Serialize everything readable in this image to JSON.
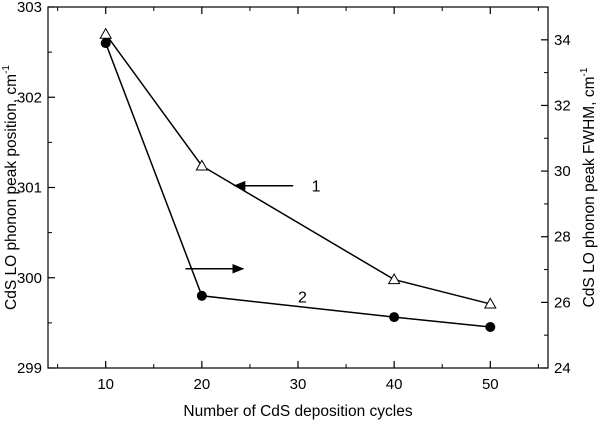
{
  "chart_data": {
    "type": "line",
    "xlabel": "Number of CdS deposition cycles",
    "ylabel_left": "CdS LO phonon peak position, cm",
    "ylabel_left_sup": "-1",
    "ylabel_right": "CdS LO phonon peak FWHM, cm",
    "ylabel_right_sup": "-1",
    "x_ticks": [
      "10",
      "20",
      "30",
      "40",
      "50"
    ],
    "y_left_ticks": [
      "299",
      "300",
      "301",
      "302",
      "303"
    ],
    "y_right_ticks": [
      "24",
      "26",
      "28",
      "30",
      "32",
      "34"
    ],
    "xlim": [
      4,
      56
    ],
    "ylim_left": [
      299,
      303
    ],
    "ylim_right": [
      24,
      35
    ],
    "series": [
      {
        "name": "1",
        "axis": "left",
        "marker": "open-triangle",
        "x": [
          10,
          20,
          40,
          50
        ],
        "values": [
          302.7,
          301.24,
          299.98,
          299.71
        ]
      },
      {
        "name": "2",
        "axis": "right",
        "marker": "filled-circle",
        "x": [
          10,
          20,
          40,
          50
        ],
        "values": [
          33.9,
          26.2,
          25.55,
          25.25
        ]
      }
    ],
    "annotations": [
      {
        "text": "1",
        "points_to": "left-axis",
        "x": 31,
        "y_left": 301.02
      },
      {
        "text": "2",
        "points_to": "right-axis",
        "x": 30,
        "y_left": 299.79
      }
    ]
  }
}
